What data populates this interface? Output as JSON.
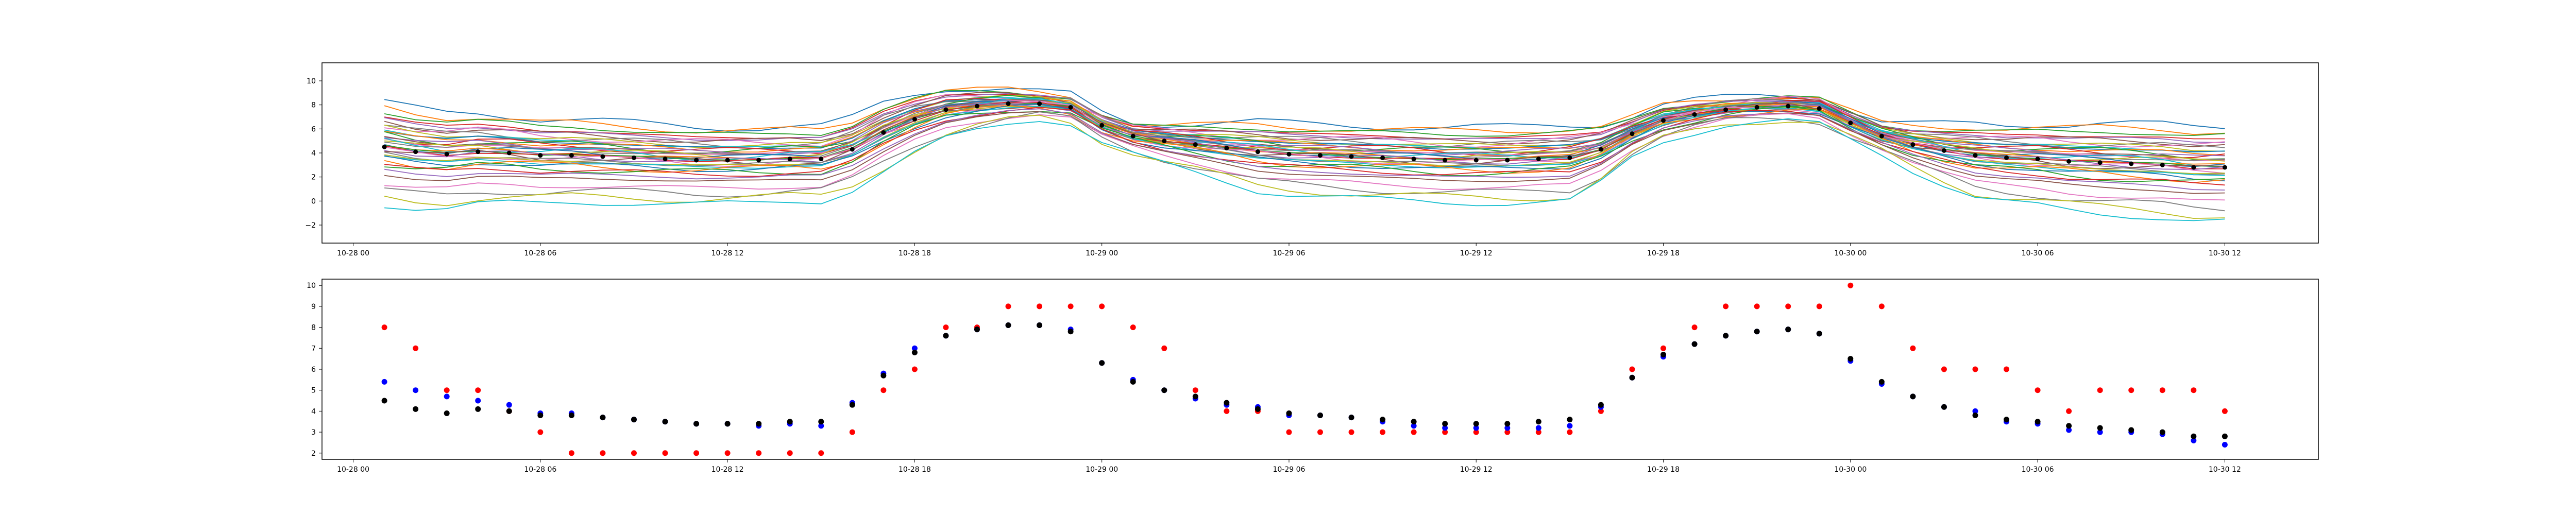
{
  "chart_data": [
    {
      "type": "line",
      "title": "",
      "xlabel": "",
      "ylabel": "",
      "x_ticks": [
        "10-28 00",
        "10-28 06",
        "10-28 12",
        "10-28 18",
        "10-29 00",
        "10-29 06",
        "10-29 12",
        "10-29 18",
        "10-30 00",
        "10-30 06",
        "10-30 12"
      ],
      "y_ticks": [
        -2,
        0,
        2,
        4,
        6,
        8,
        10
      ],
      "xlim": [
        "10-27 23:00",
        "10-30 15:00"
      ],
      "ylim": [
        -3.5,
        11.5
      ],
      "grid": false,
      "legend": "none",
      "ensemble": {
        "count": 40,
        "spread_reference_hours": [
          0,
          3,
          6,
          9,
          15,
          17,
          20,
          22,
          25,
          29,
          33,
          39,
          41,
          44,
          46,
          49,
          52,
          56,
          60
        ],
        "offsets": [
          3.8,
          3.4,
          3.0,
          2.6,
          2.4,
          2.2,
          2.0,
          1.8,
          1.7,
          1.5,
          1.4,
          1.2,
          1.1,
          1.0,
          0.9,
          0.8,
          0.7,
          0.6,
          0.5,
          0.4,
          0.3,
          0.2,
          0.1,
          0.0,
          -0.1,
          -0.2,
          -0.3,
          -0.5,
          -0.6,
          -0.8,
          -1.0,
          -1.1,
          -1.4,
          -1.6,
          -2.0,
          -2.4,
          -3.2,
          -3.8,
          -4.4,
          -5.0
        ],
        "colors": [
          "#1f77b4",
          "#ff7f0e",
          "#2ca02c",
          "#d62728",
          "#9467bd",
          "#8c564b",
          "#e377c2",
          "#7f7f7f",
          "#bcbd22",
          "#17becf"
        ]
      },
      "series": [
        {
          "marker": "black dots",
          "color": "#000000",
          "x_hours": [
            1,
            2,
            3,
            4,
            5,
            6,
            7,
            8,
            9,
            10,
            11,
            12,
            13,
            14,
            15,
            16,
            17,
            18,
            19,
            20,
            21,
            22,
            23,
            24,
            25,
            26,
            27,
            28,
            29,
            30,
            31,
            32,
            33,
            34,
            35,
            36,
            37,
            38,
            39,
            40,
            41,
            42,
            43,
            44,
            45,
            46,
            47,
            48,
            49,
            50,
            51,
            52,
            53,
            54,
            55,
            56,
            57,
            58,
            59,
            60
          ],
          "values": [
            4.5,
            4.1,
            3.9,
            4.1,
            4.0,
            3.8,
            3.8,
            3.7,
            3.6,
            3.5,
            3.4,
            3.4,
            3.4,
            3.5,
            3.5,
            4.3,
            5.7,
            6.8,
            7.6,
            7.9,
            8.1,
            8.1,
            7.8,
            6.3,
            5.4,
            5.0,
            4.7,
            4.4,
            4.1,
            3.9,
            3.8,
            3.7,
            3.6,
            3.5,
            3.4,
            3.4,
            3.4,
            3.5,
            3.6,
            4.3,
            5.6,
            6.7,
            7.2,
            7.6,
            7.8,
            7.9,
            7.7,
            6.5,
            5.4,
            4.7,
            4.2,
            3.8,
            3.6,
            3.5,
            3.3,
            3.2,
            3.1,
            3.0,
            2.8,
            2.8
          ]
        }
      ]
    },
    {
      "type": "scatter",
      "title": "",
      "xlabel": "",
      "ylabel": "",
      "x_ticks": [
        "10-28 00",
        "10-28 06",
        "10-28 12",
        "10-28 18",
        "10-29 00",
        "10-29 06",
        "10-29 12",
        "10-29 18",
        "10-30 00",
        "10-30 06",
        "10-30 12"
      ],
      "y_ticks": [
        2,
        3,
        4,
        5,
        6,
        7,
        8,
        9,
        10
      ],
      "xlim": [
        "10-27 23:00",
        "10-30 15:00"
      ],
      "ylim": [
        1.7,
        10.3
      ],
      "grid": false,
      "legend": "none",
      "series": [
        {
          "color": "#ff0000",
          "x_hours": [
            1,
            2,
            3,
            4,
            5,
            6,
            7,
            8,
            9,
            10,
            11,
            12,
            13,
            14,
            15,
            16,
            17,
            18,
            19,
            20,
            21,
            22,
            23,
            24,
            25,
            26,
            27,
            28,
            29,
            30,
            31,
            32,
            33,
            34,
            35,
            36,
            37,
            38,
            39,
            40,
            41,
            42,
            43,
            44,
            45,
            46,
            47,
            48,
            49,
            50,
            51,
            52,
            53,
            54,
            55,
            56,
            57,
            58,
            59,
            60
          ],
          "values": [
            8,
            7,
            5,
            5,
            4,
            3,
            2,
            2,
            2,
            2,
            2,
            2,
            2,
            2,
            2,
            3,
            5,
            6,
            8,
            8,
            9,
            9,
            9,
            9,
            8,
            7,
            5,
            4,
            4,
            3,
            3,
            3,
            3,
            3,
            3,
            3,
            3,
            3,
            3,
            4,
            6,
            7,
            8,
            9,
            9,
            9,
            9,
            10,
            9,
            7,
            6,
            6,
            6,
            5,
            4,
            5,
            5,
            5,
            5,
            4
          ]
        },
        {
          "color": "#0000ff",
          "x_hours": [
            1,
            2,
            3,
            4,
            5,
            6,
            7,
            8,
            9,
            10,
            11,
            12,
            13,
            14,
            15,
            16,
            17,
            18,
            19,
            20,
            21,
            22,
            23,
            24,
            25,
            26,
            27,
            28,
            29,
            30,
            31,
            32,
            33,
            34,
            35,
            36,
            37,
            38,
            39,
            40,
            41,
            42,
            43,
            44,
            45,
            46,
            47,
            48,
            49,
            50,
            51,
            52,
            53,
            54,
            55,
            56,
            57,
            58,
            59,
            60
          ],
          "values": [
            5.4,
            5.0,
            4.7,
            4.5,
            4.3,
            3.9,
            3.9,
            3.7,
            3.6,
            3.5,
            3.4,
            3.4,
            3.3,
            3.4,
            3.3,
            4.4,
            5.8,
            7.0,
            7.6,
            7.9,
            8.1,
            8.1,
            7.9,
            6.3,
            5.5,
            5.0,
            4.6,
            4.3,
            4.2,
            3.8,
            3.8,
            3.7,
            3.5,
            3.3,
            3.2,
            3.2,
            3.2,
            3.2,
            3.3,
            4.2,
            5.6,
            6.6,
            7.2,
            7.6,
            7.8,
            7.9,
            7.7,
            6.4,
            5.3,
            4.7,
            4.2,
            4.0,
            3.5,
            3.4,
            3.1,
            3.0,
            3.0,
            2.9,
            2.6,
            2.4
          ]
        },
        {
          "color": "#000000",
          "x_hours": [
            1,
            2,
            3,
            4,
            5,
            6,
            7,
            8,
            9,
            10,
            11,
            12,
            13,
            14,
            15,
            16,
            17,
            18,
            19,
            20,
            21,
            22,
            23,
            24,
            25,
            26,
            27,
            28,
            29,
            30,
            31,
            32,
            33,
            34,
            35,
            36,
            37,
            38,
            39,
            40,
            41,
            42,
            43,
            44,
            45,
            46,
            47,
            48,
            49,
            50,
            51,
            52,
            53,
            54,
            55,
            56,
            57,
            58,
            59,
            60
          ],
          "values": [
            4.5,
            4.1,
            3.9,
            4.1,
            4.0,
            3.8,
            3.8,
            3.7,
            3.6,
            3.5,
            3.4,
            3.4,
            3.4,
            3.5,
            3.5,
            4.3,
            5.7,
            6.8,
            7.6,
            7.9,
            8.1,
            8.1,
            7.8,
            6.3,
            5.4,
            5.0,
            4.7,
            4.4,
            4.1,
            3.9,
            3.8,
            3.7,
            3.6,
            3.5,
            3.4,
            3.4,
            3.4,
            3.5,
            3.6,
            4.3,
            5.6,
            6.7,
            7.2,
            7.6,
            7.8,
            7.9,
            7.7,
            6.5,
            5.4,
            4.7,
            4.2,
            3.8,
            3.6,
            3.5,
            3.3,
            3.2,
            3.1,
            3.0,
            2.8,
            2.8
          ]
        }
      ]
    }
  ]
}
